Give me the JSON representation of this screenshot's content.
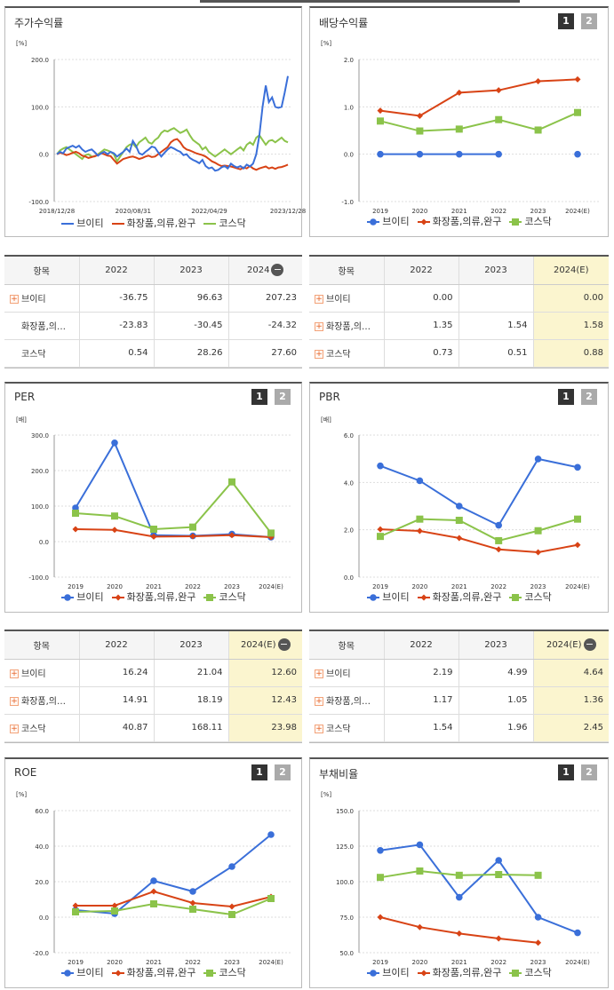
{
  "colors": {
    "vt": "#3a6fd9",
    "cos": "#d84315",
    "kosdaq": "#8bc34a"
  },
  "legend_labels": {
    "vt": "브이티",
    "cos": "화장품,의류,완구",
    "kosdaq": "코스닥"
  },
  "pager": {
    "one": "1",
    "two": "2"
  },
  "panels": {
    "stock": {
      "title": "주가수익률",
      "unit": "[%]",
      "chart_data": {
        "type": "line",
        "ylim": [
          -100,
          200
        ],
        "yticks": [
          "200.0",
          "100.0",
          "0.0",
          "-100.0"
        ],
        "xticks": [
          "2018/12/28",
          "2020/08/31",
          "2022/04/29",
          "2023/12/28"
        ],
        "series": [
          {
            "name": "브이티",
            "color_key": "vt",
            "values": [
              0,
              5,
              2,
              12,
              15,
              18,
              14,
              18,
              10,
              5,
              8,
              10,
              4,
              -3,
              2,
              5,
              0,
              5,
              2,
              -5,
              0,
              5,
              12,
              5,
              28,
              18,
              2,
              -1,
              5,
              10,
              16,
              14,
              4,
              -5,
              3,
              10,
              15,
              12,
              8,
              5,
              -2,
              0,
              -8,
              -12,
              -15,
              -19,
              -12,
              -25,
              -30,
              -28,
              -35,
              -33,
              -28,
              -25,
              -30,
              -20,
              -25,
              -28,
              -25,
              -30,
              -22,
              -26,
              -20,
              0,
              40,
              100,
              145,
              110,
              120,
              100,
              98,
              100,
              130,
              165
            ]
          },
          {
            "name": "화장품,의류,완구",
            "color_key": "cos",
            "values": [
              0,
              3,
              1,
              -2,
              0,
              3,
              5,
              2,
              -3,
              -5,
              -8,
              -6,
              -4,
              -2,
              2,
              0,
              -3,
              -4,
              -12,
              -20,
              -15,
              -10,
              -8,
              -6,
              -5,
              -7,
              -10,
              -8,
              -5,
              -3,
              -6,
              -5,
              0,
              5,
              10,
              15,
              25,
              30,
              32,
              25,
              15,
              10,
              8,
              5,
              2,
              0,
              -2,
              -5,
              -10,
              -15,
              -18,
              -22,
              -25,
              -24,
              -25,
              -26,
              -28,
              -30,
              -32,
              -28,
              -30,
              -25,
              -30,
              -33,
              -30,
              -28,
              -26,
              -30,
              -28,
              -31,
              -28,
              -27,
              -25,
              -22
            ]
          },
          {
            "name": "코스닥",
            "color_key": "kosdaq",
            "values": [
              0,
              8,
              12,
              15,
              10,
              5,
              0,
              -5,
              -10,
              -2,
              0,
              -5,
              -5,
              0,
              5,
              10,
              8,
              5,
              0,
              -15,
              -5,
              5,
              15,
              20,
              22,
              15,
              25,
              30,
              35,
              25,
              22,
              30,
              35,
              45,
              50,
              48,
              52,
              55,
              50,
              45,
              48,
              52,
              40,
              30,
              25,
              20,
              10,
              15,
              5,
              0,
              -5,
              0,
              5,
              10,
              5,
              0,
              5,
              10,
              15,
              8,
              20,
              25,
              20,
              35,
              40,
              30,
              20,
              28,
              30,
              25,
              30,
              35,
              28,
              25
            ]
          }
        ]
      }
    },
    "dividend": {
      "title": "배당수익률",
      "unit": "[%]",
      "chart_data": {
        "type": "line",
        "ylim": [
          -1.0,
          2.0
        ],
        "yticks": [
          "2.0",
          "1.0",
          "0.0",
          "-1.0"
        ],
        "categories": [
          "2019",
          "2020",
          "2021",
          "2022",
          "2023",
          "2024(E)"
        ],
        "series": [
          {
            "name": "브이티",
            "color_key": "vt",
            "marker": "circle",
            "values": [
              0.0,
              0.0,
              0.0,
              0.0,
              null,
              0.0
            ]
          },
          {
            "name": "화장품,의류,완구",
            "color_key": "cos",
            "marker": "diamond",
            "values": [
              0.92,
              0.81,
              1.3,
              1.35,
              1.54,
              1.58
            ]
          },
          {
            "name": "코스닥",
            "color_key": "kosdaq",
            "marker": "square",
            "values": [
              0.7,
              0.49,
              0.53,
              0.73,
              0.51,
              0.88
            ]
          }
        ]
      }
    },
    "per": {
      "title": "PER",
      "unit": "[배]",
      "chart_data": {
        "type": "line",
        "ylim": [
          -100,
          300
        ],
        "yticks": [
          "300.0",
          "200.0",
          "100.0",
          "0.0",
          "-100.0"
        ],
        "categories": [
          "2019",
          "2020",
          "2021",
          "2022",
          "2023",
          "2024(E)"
        ],
        "series": [
          {
            "name": "브이티",
            "color_key": "vt",
            "marker": "circle",
            "values": [
              95,
              278,
              18,
              16.24,
              21.04,
              12.6
            ]
          },
          {
            "name": "화장품,의류,완구",
            "color_key": "cos",
            "marker": "diamond",
            "values": [
              35,
              33,
              14,
              14.91,
              18.19,
              12.43
            ]
          },
          {
            "name": "코스닥",
            "color_key": "kosdaq",
            "marker": "square",
            "values": [
              80,
              72,
              35,
              40.87,
              168.11,
              23.98
            ]
          }
        ]
      }
    },
    "pbr": {
      "title": "PBR",
      "unit": "[배]",
      "chart_data": {
        "type": "line",
        "ylim": [
          0,
          6
        ],
        "yticks": [
          "6.0",
          "4.0",
          "2.0",
          "0.0"
        ],
        "categories": [
          "2019",
          "2020",
          "2021",
          "2022",
          "2023",
          "2024(E)"
        ],
        "series": [
          {
            "name": "브이티",
            "color_key": "vt",
            "marker": "circle",
            "values": [
              4.7,
              4.07,
              3.0,
              2.19,
              4.99,
              4.64
            ]
          },
          {
            "name": "화장품,의류,완구",
            "color_key": "cos",
            "marker": "diamond",
            "values": [
              2.02,
              1.95,
              1.65,
              1.17,
              1.05,
              1.36
            ]
          },
          {
            "name": "코스닥",
            "color_key": "kosdaq",
            "marker": "square",
            "values": [
              1.72,
              2.45,
              2.4,
              1.54,
              1.96,
              2.45
            ]
          }
        ]
      }
    },
    "roe": {
      "title": "ROE",
      "unit": "[%]",
      "chart_data": {
        "type": "line",
        "ylim": [
          -20,
          60
        ],
        "yticks": [
          "60.0",
          "40.0",
          "20.0",
          "0.0",
          "-20.0"
        ],
        "categories": [
          "2019",
          "2020",
          "2021",
          "2022",
          "2023",
          "2024(E)"
        ],
        "series": [
          {
            "name": "브이티",
            "color_key": "vt",
            "marker": "circle",
            "values": [
              4,
              2,
              20.5,
              14.5,
              28.5,
              46.5
            ]
          },
          {
            "name": "화장품,의류,완구",
            "color_key": "cos",
            "marker": "diamond",
            "values": [
              6.5,
              6.5,
              14.5,
              8,
              6,
              11.5
            ]
          },
          {
            "name": "코스닥",
            "color_key": "kosdaq",
            "marker": "square",
            "values": [
              3,
              3.5,
              7.5,
              4.5,
              1.5,
              10.5
            ]
          }
        ]
      }
    },
    "debt": {
      "title": "부채비율",
      "unit": "[%]",
      "chart_data": {
        "type": "line",
        "ylim": [
          50,
          150
        ],
        "yticks": [
          "150.0",
          "125.0",
          "100.0",
          "75.0",
          "50.0"
        ],
        "categories": [
          "2019",
          "2020",
          "2021",
          "2022",
          "2023",
          "2024(E)"
        ],
        "series": [
          {
            "name": "브이티",
            "color_key": "vt",
            "marker": "circle",
            "values": [
              122,
              126,
              89,
              115,
              75,
              64
            ]
          },
          {
            "name": "화장품,의류,완구",
            "color_key": "cos",
            "marker": "diamond",
            "values": [
              75,
              68,
              63.5,
              60,
              57,
              null
            ]
          },
          {
            "name": "코스닥",
            "color_key": "kosdaq",
            "marker": "square",
            "values": [
              103,
              107.5,
              104.5,
              105,
              104.5,
              null
            ]
          }
        ]
      }
    }
  },
  "tables": {
    "stock": {
      "headers": [
        "항목",
        "2022",
        "2023",
        "2024"
      ],
      "rows": [
        {
          "name": "브이티",
          "plus": true,
          "values": [
            "-36.75",
            "96.63",
            "207.23"
          ]
        },
        {
          "name": "화장품,의…",
          "plus": false,
          "values": [
            "-23.83",
            "-30.45",
            "-24.32"
          ]
        },
        {
          "name": "코스닥",
          "plus": false,
          "values": [
            "0.54",
            "28.26",
            "27.60"
          ]
        }
      ]
    },
    "dividend": {
      "headers": [
        "항목",
        "2022",
        "2023",
        "2024(E)"
      ],
      "rows": [
        {
          "name": "브이티",
          "plus": true,
          "values": [
            "0.00",
            "",
            "0.00"
          ]
        },
        {
          "name": "화장품,의…",
          "plus": true,
          "values": [
            "1.35",
            "1.54",
            "1.58"
          ]
        },
        {
          "name": "코스닥",
          "plus": true,
          "values": [
            "0.73",
            "0.51",
            "0.88"
          ]
        }
      ]
    },
    "per": {
      "headers": [
        "항목",
        "2022",
        "2023",
        "2024(E)"
      ],
      "rows": [
        {
          "name": "브이티",
          "plus": true,
          "values": [
            "16.24",
            "21.04",
            "12.60"
          ]
        },
        {
          "name": "화장품,의…",
          "plus": true,
          "values": [
            "14.91",
            "18.19",
            "12.43"
          ]
        },
        {
          "name": "코스닥",
          "plus": true,
          "values": [
            "40.87",
            "168.11",
            "23.98"
          ]
        }
      ]
    },
    "pbr": {
      "headers": [
        "항목",
        "2022",
        "2023",
        "2024(E)"
      ],
      "rows": [
        {
          "name": "브이티",
          "plus": true,
          "values": [
            "2.19",
            "4.99",
            "4.64"
          ]
        },
        {
          "name": "화장품,의…",
          "plus": true,
          "values": [
            "1.17",
            "1.05",
            "1.36"
          ]
        },
        {
          "name": "코스닥",
          "plus": true,
          "values": [
            "1.54",
            "1.96",
            "2.45"
          ]
        }
      ]
    }
  }
}
